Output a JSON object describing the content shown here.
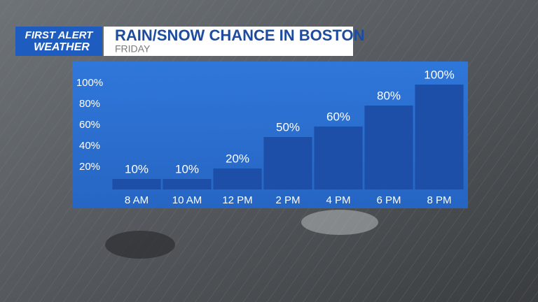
{
  "logo": {
    "line1": "FIRST ALERT",
    "line2": "WEATHER"
  },
  "chart_data": {
    "type": "bar",
    "title": "RAIN/SNOW CHANCE IN BOSTON",
    "subtitle": "FRIDAY",
    "categories": [
      "8 AM",
      "10 AM",
      "12 PM",
      "2 PM",
      "4 PM",
      "6 PM",
      "8 PM"
    ],
    "values": [
      10,
      10,
      20,
      50,
      60,
      80,
      100
    ],
    "value_labels": [
      "10%",
      "10%",
      "20%",
      "50%",
      "60%",
      "80%",
      "100%"
    ],
    "color": "#1d4fa9",
    "ylim": [
      0,
      100
    ],
    "yticks": [
      {
        "value": 20,
        "label": "20%"
      },
      {
        "value": 40,
        "label": "40%"
      },
      {
        "value": 60,
        "label": "60%"
      },
      {
        "value": 80,
        "label": "80%"
      },
      {
        "value": 100,
        "label": "100%"
      }
    ],
    "grid": false
  }
}
